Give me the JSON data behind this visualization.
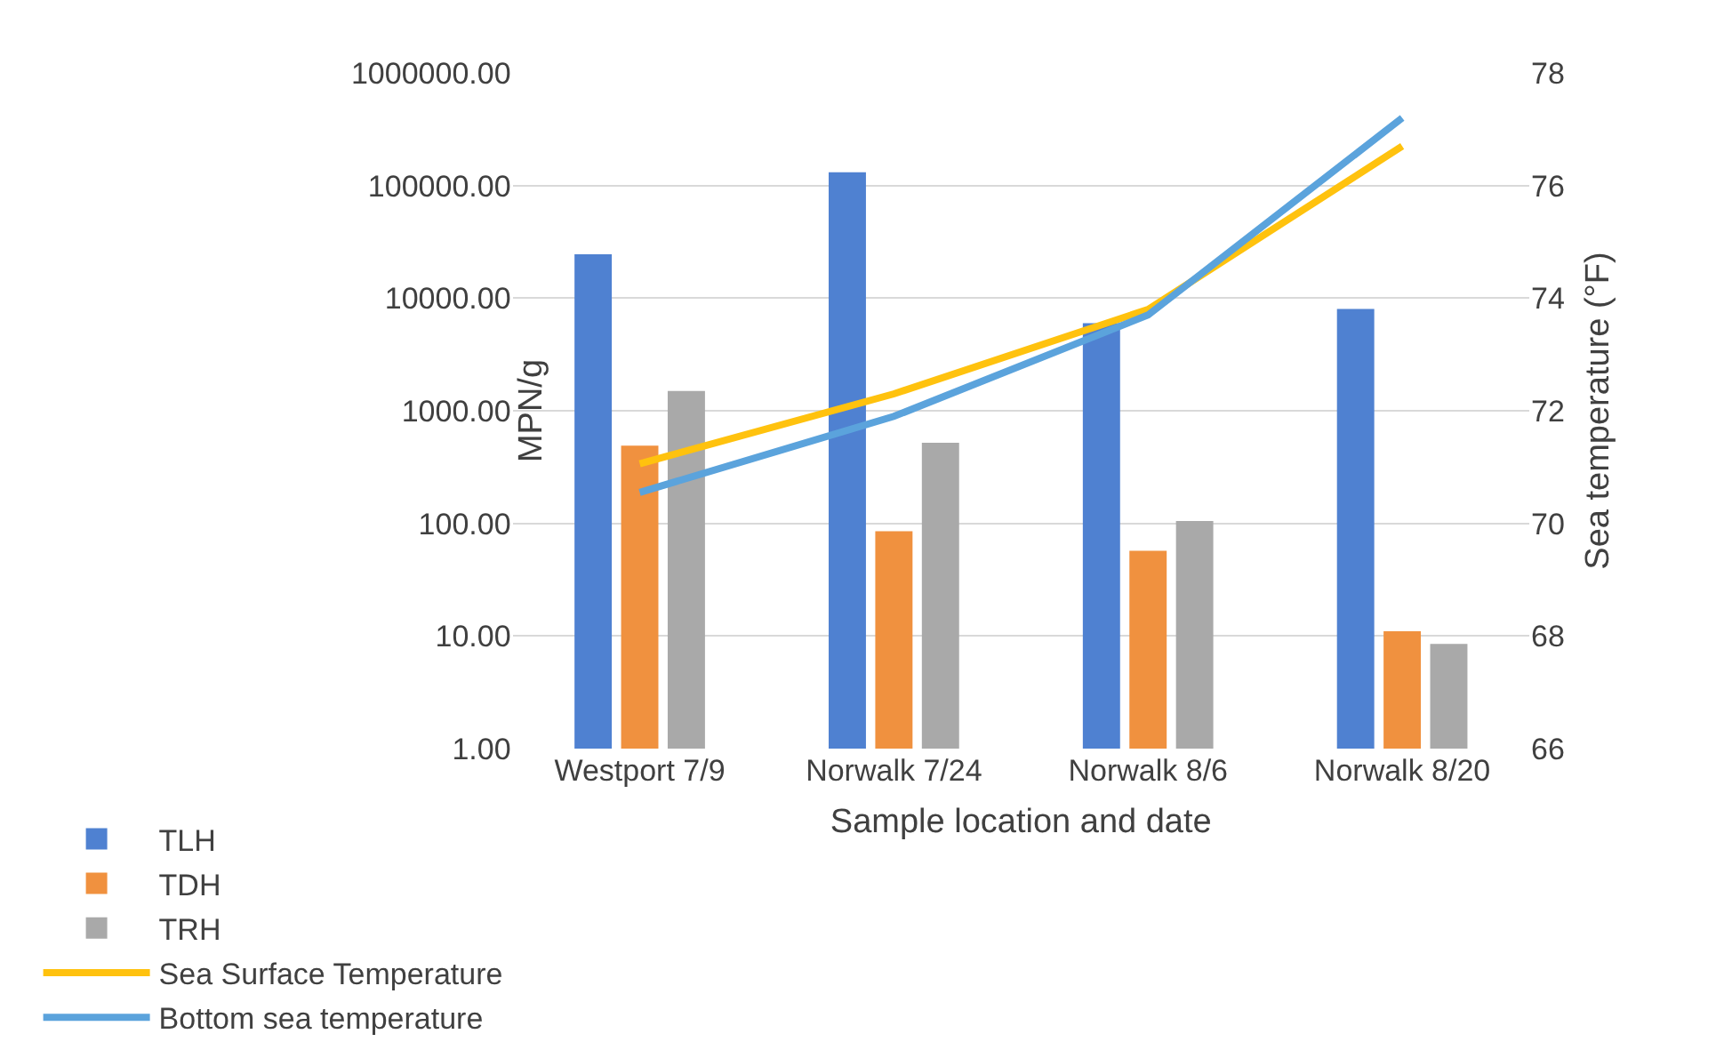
{
  "chart_data": {
    "type": "bar",
    "xlabel": "Sample location and date",
    "ylabel": "MPN/g",
    "y2label": "Sea temperature (°F)",
    "categories": [
      "Westport 7/9",
      "Norwalk 7/24",
      "Norwalk 8/6",
      "Norwalk 8/20"
    ],
    "series": [
      {
        "name": "TLH",
        "color": "#4f81d1",
        "values": [
          24500,
          131000,
          6000,
          8000
        ]
      },
      {
        "name": "TDH",
        "color": "#f0913f",
        "values": [
          490,
          85,
          57,
          11
        ]
      },
      {
        "name": "TRH",
        "color": "#a9a9a9",
        "values": [
          1500,
          520,
          105,
          8.5
        ]
      },
      {
        "name": "Sea Surface Temperature",
        "type": "line",
        "axis": "y2",
        "color": "#ffc20e",
        "values": [
          71.06,
          72.3,
          73.8,
          76.7
        ]
      },
      {
        "name": "Bottom sea temperature",
        "type": "line",
        "axis": "y2",
        "color": "#5ba3dc",
        "values": [
          70.55,
          71.9,
          73.7,
          77.2
        ]
      }
    ],
    "log": true,
    "ylim": [
      1,
      1000000
    ],
    "yticks": [
      {
        "value": 1,
        "label": "1.00"
      },
      {
        "value": 10,
        "label": "10.00"
      },
      {
        "value": 100,
        "label": "100.00"
      },
      {
        "value": 1000,
        "label": "1000.00"
      },
      {
        "value": 10000,
        "label": "10000.00"
      },
      {
        "value": 100000,
        "label": "100000.00"
      },
      {
        "value": 1000000,
        "label": "1000000.00"
      }
    ],
    "y2lim": [
      66,
      78
    ],
    "y2ticks": [
      66,
      68,
      70,
      72,
      74,
      76,
      78
    ],
    "grid": "y",
    "legend": "bottom left",
    "marker": "none",
    "line_style": "solid"
  }
}
